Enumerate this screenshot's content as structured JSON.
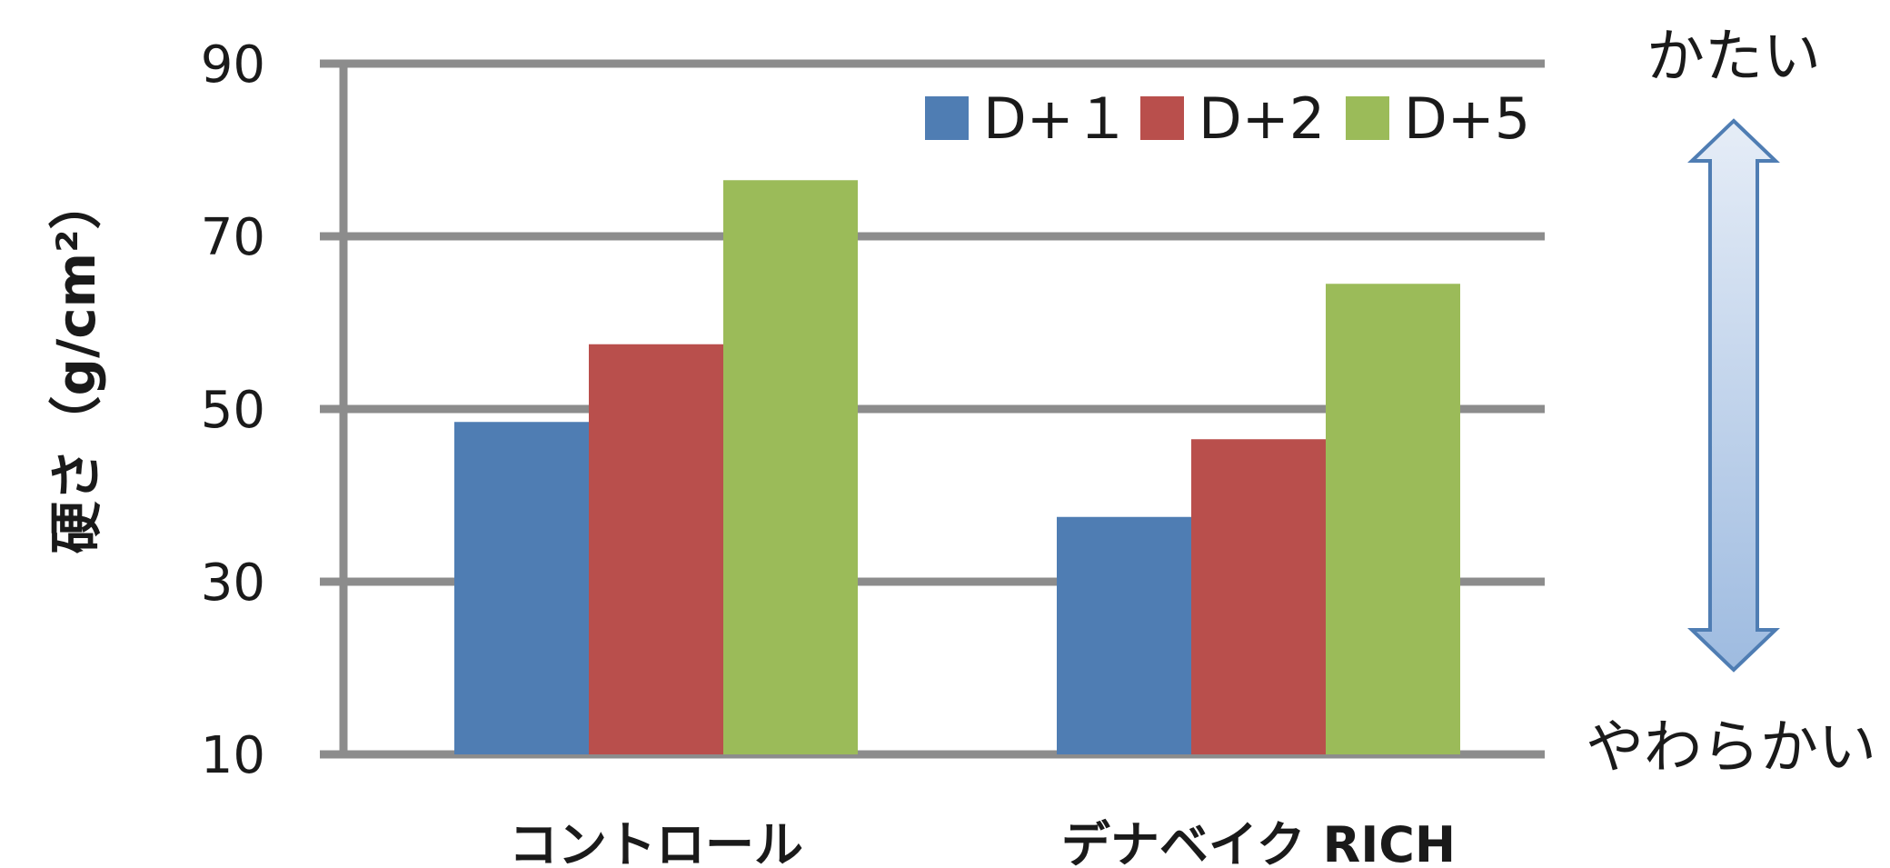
{
  "chart_data": {
    "type": "bar",
    "title": "",
    "xlabel": "",
    "ylabel": "硬さ（g/cm²）",
    "ylim": [
      10,
      90
    ],
    "yticks": [
      "10",
      "30",
      "50",
      "70",
      "90"
    ],
    "grid": true,
    "legend_position": "top-right",
    "categories": [
      "コントロール",
      "デナベイク RICH"
    ],
    "series": [
      {
        "name": "D+１",
        "values": [
          48.5,
          37.5
        ],
        "color": "#4f7db3"
      },
      {
        "name": "D+2",
        "values": [
          57.5,
          46.5
        ],
        "color": "#b94f4c"
      },
      {
        "name": "D+5",
        "values": [
          76.5,
          64.5
        ],
        "color": "#9bbb59"
      }
    ]
  },
  "annotations": {
    "top": "かたい",
    "bottom": "やわらかい",
    "arrow_icon": "double-arrow-icon"
  },
  "colors": {
    "grid": "#8c8c8c",
    "arrow_fill_top": "#e6edf7",
    "arrow_fill_bottom": "#9ebbe0",
    "arrow_stroke": "#4f7db3"
  }
}
